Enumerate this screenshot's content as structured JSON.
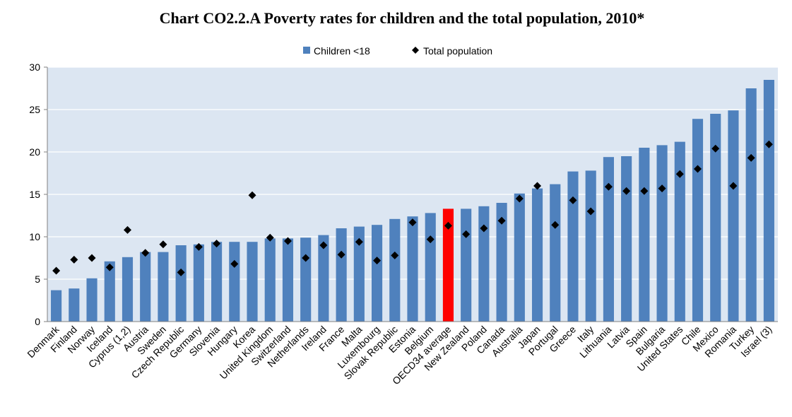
{
  "chart_data": {
    "type": "bar",
    "title": "Chart CO2.2.A Poverty rates for children and the total population, 2010*",
    "xlabel": "",
    "ylabel": "",
    "ylim": [
      0,
      30
    ],
    "yticks": [
      0,
      5,
      10,
      15,
      20,
      25,
      30
    ],
    "grid": true,
    "legend": "top-center",
    "categories": [
      "Denmark",
      "Finland",
      "Norway",
      "Iceland",
      "Cyprus (1,2)",
      "Austria",
      "Sweden",
      "Czech Republic",
      "Germany",
      "Slovenia",
      "Hungary",
      "Korea",
      "United Kingdom",
      "Switzerland",
      "Netherlands",
      "Ireland",
      "France",
      "Malta",
      "Luxembourg",
      "Slovak Republic",
      "Estonia",
      "Belgium",
      "OECD34 average",
      "New Zealand",
      "Poland",
      "Canada",
      "Australia",
      "Japan",
      "Portugal",
      "Greece",
      "Italy",
      "Lithuania",
      "Latvia",
      "Spain",
      "Bulgaria",
      "United States",
      "Chile",
      "Mexico",
      "Romania",
      "Turkey",
      "Israel (3)"
    ],
    "highlight_category": "OECD34 average",
    "series": [
      {
        "name": "Children <18",
        "kind": "bar",
        "color": "#4F81BD",
        "values": [
          3.7,
          3.9,
          5.1,
          7.1,
          7.6,
          8.2,
          8.2,
          9.0,
          9.1,
          9.4,
          9.4,
          9.4,
          9.8,
          9.8,
          9.9,
          10.2,
          11.0,
          11.2,
          11.4,
          12.1,
          12.4,
          12.8,
          13.3,
          13.3,
          13.6,
          14.0,
          15.1,
          15.7,
          16.2,
          17.7,
          17.8,
          19.4,
          19.5,
          20.5,
          20.8,
          21.2,
          23.9,
          24.5,
          24.9,
          27.5,
          28.5
        ]
      },
      {
        "name": "Total population",
        "kind": "marker",
        "color": "#000000",
        "values": [
          6.0,
          7.3,
          7.5,
          6.4,
          10.8,
          8.1,
          9.1,
          5.8,
          8.8,
          9.2,
          6.8,
          14.9,
          9.9,
          9.5,
          7.5,
          9.0,
          7.9,
          9.4,
          7.2,
          7.8,
          11.7,
          9.7,
          11.3,
          10.3,
          11.0,
          11.9,
          14.5,
          16.0,
          11.4,
          14.3,
          13.0,
          15.9,
          15.4,
          15.4,
          15.7,
          17.4,
          18.0,
          20.4,
          16.0,
          19.3,
          20.9
        ]
      }
    ],
    "colors": {
      "plot_background": "#DCE6F2",
      "bar": "#4F81BD",
      "highlight_bar": "#FF0000",
      "grid": "#FFFFFF",
      "axis": "#808080"
    }
  }
}
